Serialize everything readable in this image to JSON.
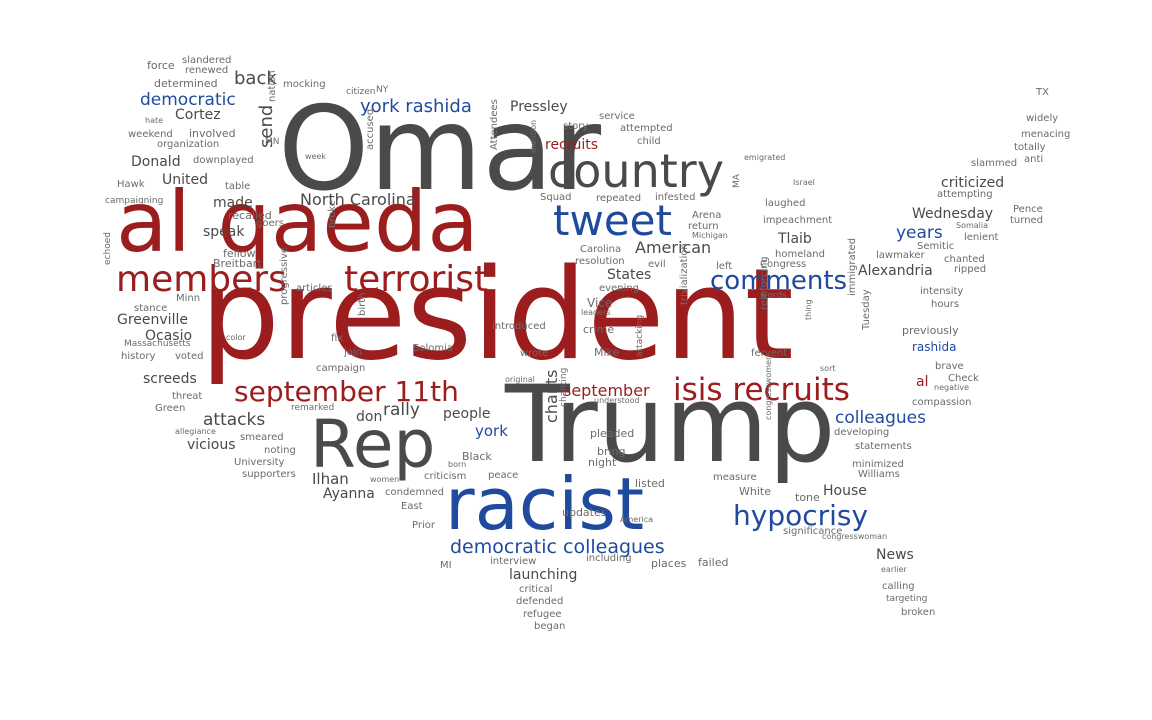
{
  "palette": {
    "red": "#9b1d1d",
    "blue": "#1f4a9e",
    "gray": "#4a4a4a",
    "light": "#6b6b6b"
  },
  "words": [
    {
      "id": "omar",
      "text": "Omar",
      "color": "gray"
    },
    {
      "id": "president",
      "text": "president",
      "color": "red"
    },
    {
      "id": "trump",
      "text": "Trump",
      "color": "gray"
    },
    {
      "id": "al_qaeda",
      "text": "al qaeda",
      "color": "red"
    },
    {
      "id": "racist",
      "text": "racist",
      "color": "blue"
    },
    {
      "id": "rep",
      "text": "Rep",
      "color": "gray"
    },
    {
      "id": "country",
      "text": "country",
      "color": "gray"
    },
    {
      "id": "tweet",
      "text": "tweet",
      "color": "blue"
    },
    {
      "id": "members",
      "text": "members",
      "color": "red"
    },
    {
      "id": "terrorist",
      "text": "terrorist",
      "color": "red"
    },
    {
      "id": "isis_recruits",
      "text": "isis recruits",
      "color": "red"
    },
    {
      "id": "september_11th",
      "text": "september 11th",
      "color": "red"
    },
    {
      "id": "hypocrisy",
      "text": "hypocrisy",
      "color": "blue"
    },
    {
      "id": "comments",
      "text": "comments",
      "color": "blue"
    },
    {
      "id": "democratic_colleagues",
      "text": "democratic colleagues",
      "color": "blue"
    },
    {
      "id": "york_rashida",
      "text": "york rashida",
      "color": "blue"
    },
    {
      "id": "democratic",
      "text": "democratic",
      "color": "blue"
    },
    {
      "id": "colleagues",
      "text": "colleagues",
      "color": "blue"
    },
    {
      "id": "years",
      "text": "years",
      "color": "blue"
    },
    {
      "id": "york",
      "text": "york",
      "color": "blue"
    },
    {
      "id": "rashida",
      "text": "rashida",
      "color": "blue"
    },
    {
      "id": "recruits",
      "text": "recruits",
      "color": "red"
    },
    {
      "id": "september",
      "text": "september",
      "color": "red"
    },
    {
      "id": "al",
      "text": "al",
      "color": "red"
    },
    {
      "id": "north_carolina",
      "text": "North Carolina",
      "color": "gray"
    },
    {
      "id": "american",
      "text": "American",
      "color": "gray"
    },
    {
      "id": "pressley",
      "text": "Pressley",
      "color": "gray"
    },
    {
      "id": "rally",
      "text": "rally",
      "color": "gray"
    },
    {
      "id": "attacks",
      "text": "attacks",
      "color": "gray"
    },
    {
      "id": "chants",
      "text": "chants",
      "color": "gray"
    },
    {
      "id": "ilhan",
      "text": "Ilhan",
      "color": "gray"
    },
    {
      "id": "ayanna",
      "text": "Ayanna",
      "color": "gray"
    },
    {
      "id": "alexandria",
      "text": "Alexandria",
      "color": "gray"
    },
    {
      "id": "screeds",
      "text": "screeds",
      "color": "gray"
    },
    {
      "id": "greenville",
      "text": "Greenville",
      "color": "gray"
    },
    {
      "id": "ocasio",
      "text": "Ocasio",
      "color": "gray"
    },
    {
      "id": "cortez",
      "text": "Cortez",
      "color": "gray"
    },
    {
      "id": "back",
      "text": "back",
      "color": "gray"
    },
    {
      "id": "send",
      "text": "send",
      "color": "gray"
    },
    {
      "id": "donald",
      "text": "Donald",
      "color": "gray"
    },
    {
      "id": "united",
      "text": "United",
      "color": "gray"
    },
    {
      "id": "states",
      "text": "States",
      "color": "gray"
    },
    {
      "id": "made",
      "text": "made",
      "color": "gray"
    },
    {
      "id": "speak",
      "text": "speak",
      "color": "gray"
    },
    {
      "id": "people",
      "text": "people",
      "color": "gray"
    },
    {
      "id": "vicious",
      "text": "vicious",
      "color": "gray"
    },
    {
      "id": "house",
      "text": "House",
      "color": "gray"
    },
    {
      "id": "news",
      "text": "News",
      "color": "gray"
    },
    {
      "id": "tlaib",
      "text": "Tlaib",
      "color": "gray"
    },
    {
      "id": "wednesday",
      "text": "Wednesday",
      "color": "gray"
    },
    {
      "id": "criticized",
      "text": "criticized",
      "color": "gray"
    },
    {
      "id": "launching",
      "text": "launching",
      "color": "gray"
    },
    {
      "id": "don",
      "text": "don",
      "color": "gray"
    },
    {
      "id": "breitbart",
      "text": "Breitbart",
      "color": "light"
    },
    {
      "id": "fellow",
      "text": "fellow",
      "color": "light"
    },
    {
      "id": "recalled",
      "text": "recalled",
      "color": "light"
    },
    {
      "id": "goers",
      "text": "goers",
      "color": "light"
    },
    {
      "id": "force",
      "text": "force",
      "color": "light"
    },
    {
      "id": "slandered",
      "text": "slandered",
      "color": "light"
    },
    {
      "id": "renewed",
      "text": "renewed",
      "color": "light"
    },
    {
      "id": "determined",
      "text": "determined",
      "color": "light"
    },
    {
      "id": "mocking",
      "text": "mocking",
      "color": "light"
    },
    {
      "id": "citizen",
      "text": "citizen",
      "color": "light"
    },
    {
      "id": "ny",
      "text": "NY",
      "color": "light"
    },
    {
      "id": "nation",
      "text": "nation",
      "color": "light"
    },
    {
      "id": "hate",
      "text": "hate",
      "color": "light"
    },
    {
      "id": "weekend",
      "text": "weekend",
      "color": "light"
    },
    {
      "id": "involved",
      "text": "involved",
      "color": "light"
    },
    {
      "id": "organization",
      "text": "organization",
      "color": "light"
    },
    {
      "id": "downplayed",
      "text": "downplayed",
      "color": "light"
    },
    {
      "id": "mn",
      "text": "MN",
      "color": "light"
    },
    {
      "id": "week",
      "text": "week",
      "color": "light"
    },
    {
      "id": "hawk",
      "text": "Hawk",
      "color": "light"
    },
    {
      "id": "table",
      "text": "table",
      "color": "light"
    },
    {
      "id": "campaigning",
      "text": "campaigning",
      "color": "light"
    },
    {
      "id": "accused",
      "text": "accused",
      "color": "light"
    },
    {
      "id": "attendees",
      "text": "Attendees",
      "color": "light"
    },
    {
      "id": "mention",
      "text": "mention",
      "color": "light"
    },
    {
      "id": "squad",
      "text": "Squad",
      "color": "light"
    },
    {
      "id": "story",
      "text": "story",
      "color": "light"
    },
    {
      "id": "service",
      "text": "service",
      "color": "light"
    },
    {
      "id": "attempted",
      "text": "attempted",
      "color": "light"
    },
    {
      "id": "child",
      "text": "child",
      "color": "light"
    },
    {
      "id": "repeated",
      "text": "repeated",
      "color": "light"
    },
    {
      "id": "infested",
      "text": "infested",
      "color": "light"
    },
    {
      "id": "ma",
      "text": "MA",
      "color": "light"
    },
    {
      "id": "emigrated",
      "text": "emigrated",
      "color": "light"
    },
    {
      "id": "israel",
      "text": "Israel",
      "color": "light"
    },
    {
      "id": "laughed",
      "text": "laughed",
      "color": "light"
    },
    {
      "id": "impeachment",
      "text": "impeachment",
      "color": "light"
    },
    {
      "id": "arena",
      "text": "Arena",
      "color": "light"
    },
    {
      "id": "return",
      "text": "return",
      "color": "light"
    },
    {
      "id": "michigan",
      "text": "Michigan",
      "color": "light"
    },
    {
      "id": "carolina",
      "text": "Carolina",
      "color": "light"
    },
    {
      "id": "resolution",
      "text": "resolution",
      "color": "light"
    },
    {
      "id": "evil",
      "text": "evil",
      "color": "light"
    },
    {
      "id": "evening",
      "text": "evening",
      "color": "light"
    },
    {
      "id": "left",
      "text": "left",
      "color": "light"
    },
    {
      "id": "homeland",
      "text": "homeland",
      "color": "light"
    },
    {
      "id": "congress",
      "text": "Congress",
      "color": "light"
    },
    {
      "id": "words",
      "text": "words",
      "color": "light"
    },
    {
      "id": "vice",
      "text": "Vice",
      "color": "light"
    },
    {
      "id": "leaders",
      "text": "leaders",
      "color": "light"
    },
    {
      "id": "crime",
      "text": "crime",
      "color": "light"
    },
    {
      "id": "mike",
      "text": "Mike",
      "color": "light"
    },
    {
      "id": "trivialization",
      "text": "trivialization",
      "color": "light"
    },
    {
      "id": "reinforcing",
      "text": "reinforcing",
      "color": "light"
    },
    {
      "id": "fervent",
      "text": "fervent",
      "color": "light"
    },
    {
      "id": "thing",
      "text": "thing",
      "color": "light"
    },
    {
      "id": "sort",
      "text": "sort",
      "color": "light"
    },
    {
      "id": "immigrated",
      "text": "immigrated",
      "color": "light"
    },
    {
      "id": "tuesday",
      "text": "Tuesday",
      "color": "light"
    },
    {
      "id": "introduced",
      "text": "introduced",
      "color": "light"
    },
    {
      "id": "wrote",
      "text": "wrote",
      "color": "light"
    },
    {
      "id": "solomia",
      "text": "Solomia",
      "color": "light"
    },
    {
      "id": "birth",
      "text": "birth",
      "color": "light"
    },
    {
      "id": "fix",
      "text": "fix",
      "color": "light"
    },
    {
      "id": "join",
      "text": "join",
      "color": "light"
    },
    {
      "id": "campaign",
      "text": "campaign",
      "color": "light"
    },
    {
      "id": "progressive",
      "text": "progressive",
      "color": "light"
    },
    {
      "id": "articles",
      "text": "articles",
      "color": "light"
    },
    {
      "id": "broke",
      "text": "broke",
      "color": "light"
    },
    {
      "id": "echoed",
      "text": "echoed",
      "color": "light"
    },
    {
      "id": "stance",
      "text": "stance",
      "color": "light"
    },
    {
      "id": "minn",
      "text": "Minn",
      "color": "light"
    },
    {
      "id": "color",
      "text": "color",
      "color": "light"
    },
    {
      "id": "massachusetts",
      "text": "Massachusetts",
      "color": "light"
    },
    {
      "id": "history",
      "text": "history",
      "color": "light"
    },
    {
      "id": "voted",
      "text": "voted",
      "color": "light"
    },
    {
      "id": "threat",
      "text": "threat",
      "color": "light"
    },
    {
      "id": "green",
      "text": "Green",
      "color": "light"
    },
    {
      "id": "remarked",
      "text": "remarked",
      "color": "light"
    },
    {
      "id": "allegiance",
      "text": "allegiance",
      "color": "light"
    },
    {
      "id": "smeared",
      "text": "smeared",
      "color": "light"
    },
    {
      "id": "noting",
      "text": "noting",
      "color": "light"
    },
    {
      "id": "university",
      "text": "University",
      "color": "light"
    },
    {
      "id": "supporters",
      "text": "supporters",
      "color": "light"
    },
    {
      "id": "original",
      "text": "original",
      "color": "light"
    },
    {
      "id": "understood",
      "text": "understood",
      "color": "light"
    },
    {
      "id": "chanting",
      "text": "chanting",
      "color": "light"
    },
    {
      "id": "attacking",
      "text": "attacking",
      "color": "light"
    },
    {
      "id": "pleaded",
      "text": "pleaded",
      "color": "light"
    },
    {
      "id": "bring",
      "text": "bring",
      "color": "light"
    },
    {
      "id": "night",
      "text": "night",
      "color": "light"
    },
    {
      "id": "black",
      "text": "Black",
      "color": "light"
    },
    {
      "id": "born",
      "text": "born",
      "color": "light"
    },
    {
      "id": "criticism",
      "text": "criticism",
      "color": "light"
    },
    {
      "id": "peace",
      "text": "peace",
      "color": "light"
    },
    {
      "id": "women",
      "text": "women",
      "color": "light"
    },
    {
      "id": "condemned",
      "text": "condemned",
      "color": "light"
    },
    {
      "id": "listed",
      "text": "listed",
      "color": "light"
    },
    {
      "id": "east",
      "text": "East",
      "color": "light"
    },
    {
      "id": "prior",
      "text": "Prior",
      "color": "light"
    },
    {
      "id": "updates",
      "text": "updates",
      "color": "light"
    },
    {
      "id": "america",
      "text": "America",
      "color": "light"
    },
    {
      "id": "mi",
      "text": "MI",
      "color": "light"
    },
    {
      "id": "interview",
      "text": "interview",
      "color": "light"
    },
    {
      "id": "including",
      "text": "including",
      "color": "light"
    },
    {
      "id": "places",
      "text": "places",
      "color": "light"
    },
    {
      "id": "failed",
      "text": "failed",
      "color": "light"
    },
    {
      "id": "critical",
      "text": "critical",
      "color": "light"
    },
    {
      "id": "defended",
      "text": "defended",
      "color": "light"
    },
    {
      "id": "refugee",
      "text": "refugee",
      "color": "light"
    },
    {
      "id": "began",
      "text": "began",
      "color": "light"
    },
    {
      "id": "measure",
      "text": "measure",
      "color": "light"
    },
    {
      "id": "congresswomen",
      "text": "congresswomen",
      "color": "light"
    },
    {
      "id": "white",
      "text": "White",
      "color": "light"
    },
    {
      "id": "tone",
      "text": "tone",
      "color": "light"
    },
    {
      "id": "significance",
      "text": "significance",
      "color": "light"
    },
    {
      "id": "congresswoman",
      "text": "congresswoman",
      "color": "light"
    },
    {
      "id": "earlier",
      "text": "earlier",
      "color": "light"
    },
    {
      "id": "calling",
      "text": "calling",
      "color": "light"
    },
    {
      "id": "targeting",
      "text": "targeting",
      "color": "light"
    },
    {
      "id": "broken",
      "text": "broken",
      "color": "light"
    },
    {
      "id": "williams",
      "text": "Williams",
      "color": "light"
    },
    {
      "id": "minimized",
      "text": "minimized",
      "color": "light"
    },
    {
      "id": "statements",
      "text": "statements",
      "color": "light"
    },
    {
      "id": "developing",
      "text": "developing",
      "color": "light"
    },
    {
      "id": "compassion",
      "text": "compassion",
      "color": "light"
    },
    {
      "id": "check",
      "text": "Check",
      "color": "light"
    },
    {
      "id": "negative",
      "text": "negative",
      "color": "light"
    },
    {
      "id": "brave",
      "text": "brave",
      "color": "light"
    },
    {
      "id": "previously",
      "text": "previously",
      "color": "light"
    },
    {
      "id": "hours",
      "text": "hours",
      "color": "light"
    },
    {
      "id": "intensity",
      "text": "intensity",
      "color": "light"
    },
    {
      "id": "chanted",
      "text": "chanted",
      "color": "light"
    },
    {
      "id": "ripped",
      "text": "ripped",
      "color": "light"
    },
    {
      "id": "semitic",
      "text": "Semitic",
      "color": "light"
    },
    {
      "id": "lawmaker",
      "text": "lawmaker",
      "color": "light"
    },
    {
      "id": "somalia",
      "text": "Somalia",
      "color": "light"
    },
    {
      "id": "lenient",
      "text": "lenient",
      "color": "light"
    },
    {
      "id": "pence",
      "text": "Pence",
      "color": "light"
    },
    {
      "id": "turned",
      "text": "turned",
      "color": "light"
    },
    {
      "id": "attempting",
      "text": "attempting",
      "color": "light"
    },
    {
      "id": "slammed",
      "text": "slammed",
      "color": "light"
    },
    {
      "id": "anti",
      "text": "anti",
      "color": "light"
    },
    {
      "id": "totally",
      "text": "totally",
      "color": "light"
    },
    {
      "id": "menacing",
      "text": "menacing",
      "color": "light"
    },
    {
      "id": "widely",
      "text": "widely",
      "color": "light"
    },
    {
      "id": "tx",
      "text": "TX",
      "color": "light"
    }
  ]
}
